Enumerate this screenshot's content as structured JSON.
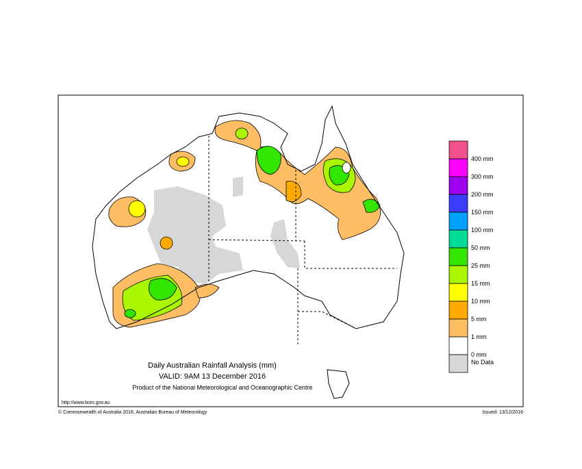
{
  "map": {
    "title": "Daily Australian Rainfall Analysis (mm)",
    "valid": "VALID: 9AM 13 December 2016",
    "product": "Product of the National Meteorological and Oceanographic Centre",
    "url": "http://www.bom.gov.au",
    "copyright": "© Commonwealth of Australia 2016, Australian Bureau of Meteorology",
    "issued": "Issued: 13/12/2016",
    "legend": {
      "colors": [
        "#f0508c",
        "#ff00ff",
        "#a000f0",
        "#3c3cff",
        "#00a0ff",
        "#00dc96",
        "#32e600",
        "#aaf500",
        "#ffff00",
        "#ffaa00",
        "#ffbe64",
        "#ffffff",
        "#d7d7d7"
      ],
      "labels": [
        "400 mm",
        "300 mm",
        "200 mm",
        "150 mm",
        "100 mm",
        "50 mm",
        "25 mm",
        "15 mm",
        "10 mm",
        "5 mm",
        "1 mm",
        "0 mm",
        "No Data"
      ]
    }
  }
}
